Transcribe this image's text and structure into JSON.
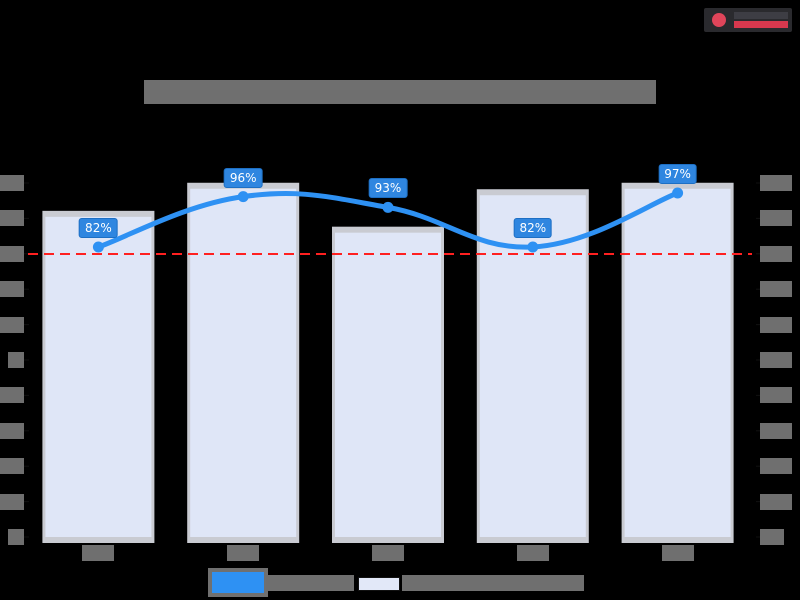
{
  "header": {
    "title": "",
    "title_redacted": true,
    "logo": "brand-logo"
  },
  "colors": {
    "background": "#000000",
    "bar_fill": "#dfe6f7",
    "bar_border": "#c9cbd2",
    "line": "#2e91f3",
    "label_bg": "#2f86e0",
    "target_line": "#ff2020",
    "redacted_text": "#6f6f6f"
  },
  "legend": {
    "items": [
      {
        "name": "line-series",
        "label": "",
        "swatch": "line"
      },
      {
        "name": "bar-series",
        "label": "",
        "swatch": "bar"
      }
    ]
  },
  "chart_data": {
    "type": "bar+line",
    "title": "",
    "categories": [
      "",
      "",
      "",
      "",
      ""
    ],
    "xlabel": "",
    "ylabel_left": "",
    "ylabel_right": "",
    "grid": false,
    "legend_position": "bottom",
    "y_ticks_count_left": 10,
    "y_ticks_count_right": 11,
    "series": [
      {
        "name": "bars",
        "type": "bar",
        "axis": "left",
        "relative_heights": [
          0.906,
          0.984,
          0.862,
          0.966,
          0.984
        ]
      },
      {
        "name": "line",
        "type": "line",
        "axis": "right",
        "smooth": true,
        "values": [
          82,
          96,
          93,
          82,
          97
        ],
        "data_labels": [
          "82%",
          "96%",
          "93%",
          "82%",
          "97%"
        ]
      }
    ],
    "reference_lines": [
      {
        "type": "horizontal",
        "style": "dashed",
        "color": "#ff2020",
        "relative_y": 0.798
      }
    ],
    "note": "Title, axis tick labels, category labels and legend text are redacted in the screenshot."
  }
}
